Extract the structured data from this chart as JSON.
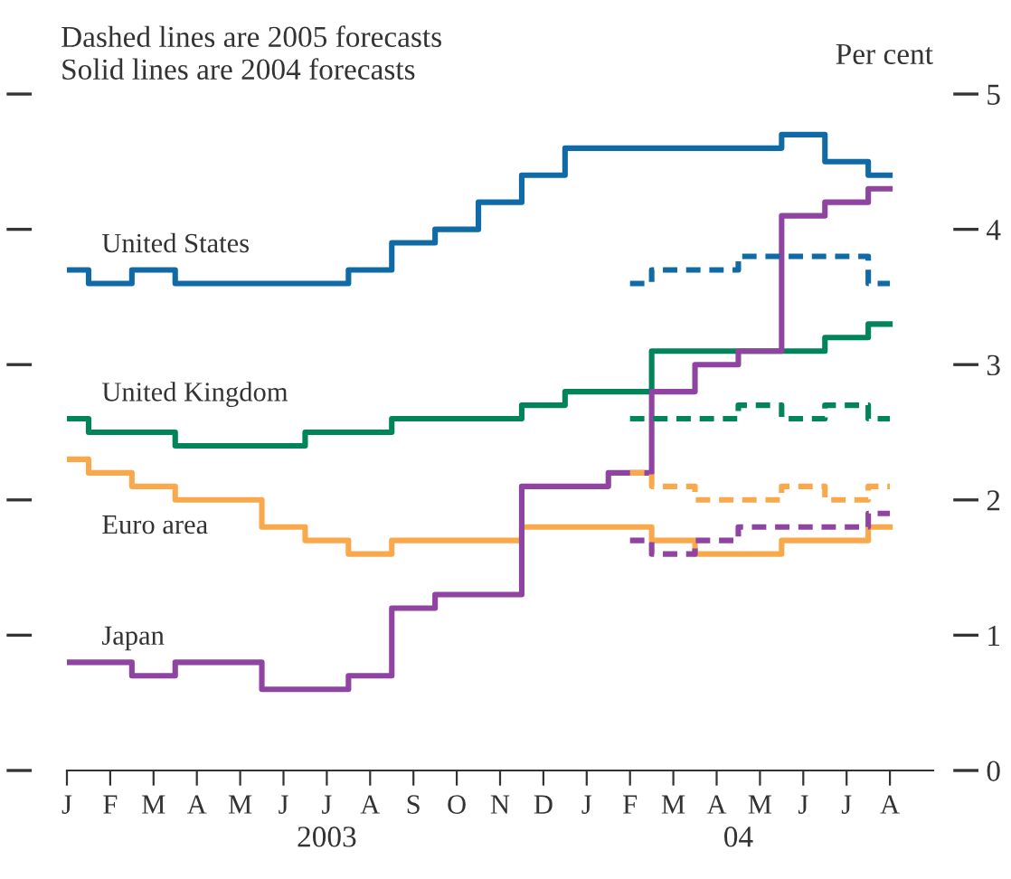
{
  "chart_data": {
    "type": "step",
    "annotations": [
      "Dashed lines are 2005 forecasts",
      "Solid lines are 2004 forecasts",
      "2003",
      "04"
    ],
    "ylabel": "Per cent",
    "categories": [
      "J",
      "F",
      "M",
      "A",
      "M",
      "J",
      "J",
      "A",
      "S",
      "O",
      "N",
      "D",
      "J",
      "F",
      "M",
      "A",
      "M",
      "J",
      "J",
      "A"
    ],
    "ylim": [
      0,
      5
    ],
    "yticks": [
      0,
      1,
      2,
      3,
      4,
      5
    ],
    "grid": false,
    "legend": false,
    "series": [
      {
        "name": "United States",
        "color": "#0f6aa6",
        "line_style": "solid",
        "values": [
          3.7,
          3.6,
          3.7,
          3.6,
          3.6,
          3.6,
          3.6,
          3.7,
          3.9,
          4.0,
          4.2,
          4.4,
          4.6,
          4.6,
          4.6,
          4.6,
          4.6,
          4.7,
          4.5,
          4.4
        ]
      },
      {
        "color": "#0f6aa6",
        "line_style": "dashed",
        "values": [
          null,
          null,
          null,
          null,
          null,
          null,
          null,
          null,
          null,
          null,
          null,
          null,
          null,
          3.6,
          3.7,
          3.7,
          3.8,
          3.8,
          3.8,
          3.6
        ]
      },
      {
        "name": "United Kingdom",
        "color": "#00845a",
        "line_style": "solid",
        "values": [
          2.6,
          2.5,
          2.5,
          2.4,
          2.4,
          2.4,
          2.5,
          2.5,
          2.6,
          2.6,
          2.6,
          2.7,
          2.8,
          2.8,
          3.1,
          3.1,
          3.1,
          3.1,
          3.2,
          3.3
        ]
      },
      {
        "color": "#00845a",
        "line_style": "dashed",
        "values": [
          null,
          null,
          null,
          null,
          null,
          null,
          null,
          null,
          null,
          null,
          null,
          null,
          null,
          2.6,
          2.6,
          2.6,
          2.7,
          2.6,
          2.7,
          2.6
        ]
      },
      {
        "name": "Euro area",
        "color": "#f9a94b",
        "line_style": "solid",
        "values": [
          2.3,
          2.2,
          2.1,
          2.0,
          2.0,
          1.8,
          1.7,
          1.6,
          1.7,
          1.7,
          1.7,
          1.8,
          1.8,
          1.8,
          1.7,
          1.6,
          1.6,
          1.7,
          1.7,
          1.8
        ]
      },
      {
        "color": "#f9a94b",
        "line_style": "dashed",
        "values": [
          null,
          null,
          null,
          null,
          null,
          null,
          null,
          null,
          null,
          null,
          null,
          null,
          null,
          2.2,
          2.1,
          2.0,
          2.0,
          2.1,
          2.0,
          2.1
        ]
      },
      {
        "name": "Japan",
        "color": "#8e44a0",
        "line_style": "solid",
        "values": [
          0.8,
          0.8,
          0.7,
          0.8,
          0.8,
          0.6,
          0.6,
          0.7,
          1.2,
          1.3,
          1.3,
          2.1,
          2.1,
          2.2,
          2.8,
          3.0,
          3.1,
          4.1,
          4.2,
          4.3
        ]
      },
      {
        "color": "#8e44a0",
        "line_style": "dashed",
        "values": [
          null,
          null,
          null,
          null,
          null,
          null,
          null,
          null,
          null,
          null,
          null,
          null,
          null,
          1.7,
          1.6,
          1.7,
          1.8,
          1.8,
          1.8,
          1.9
        ]
      }
    ]
  }
}
